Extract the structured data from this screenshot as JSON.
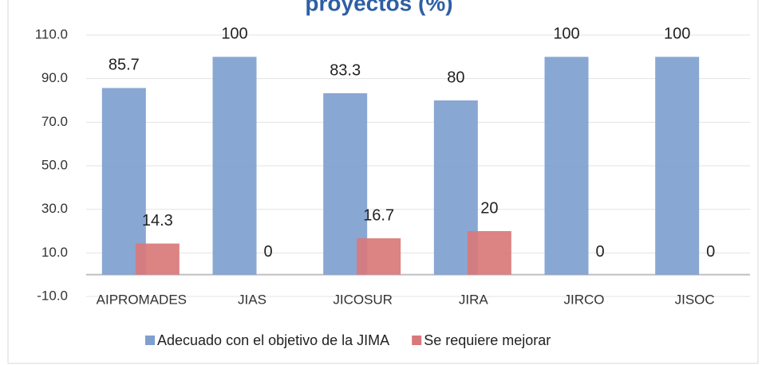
{
  "chart_data": {
    "type": "bar",
    "title": "proyectos (%)",
    "categories": [
      "AIPROMADES",
      "JIAS",
      "JICOSUR",
      "JIRA",
      "JIRCO",
      "JISOC"
    ],
    "series": [
      {
        "name": "Adecuado con el objetivo de la JIMA",
        "color": "#7f9fcf",
        "values": [
          85.7,
          100,
          83.3,
          80,
          100,
          100
        ]
      },
      {
        "name": "Se requiere mejorar",
        "color": "#d9787a",
        "values": [
          14.3,
          0,
          16.7,
          20,
          0,
          0
        ]
      }
    ],
    "ylim": [
      -10,
      110
    ],
    "yticks": [
      {
        "value": -10,
        "label": "-10.0"
      },
      {
        "value": 10,
        "label": "10.0"
      },
      {
        "value": 30,
        "label": "30.0"
      },
      {
        "value": 50,
        "label": "50.0"
      },
      {
        "value": 70,
        "label": "70.0"
      },
      {
        "value": 90,
        "label": "90.0"
      },
      {
        "value": 110,
        "label": "110.0"
      }
    ],
    "grid": true,
    "legend": "bottom"
  }
}
